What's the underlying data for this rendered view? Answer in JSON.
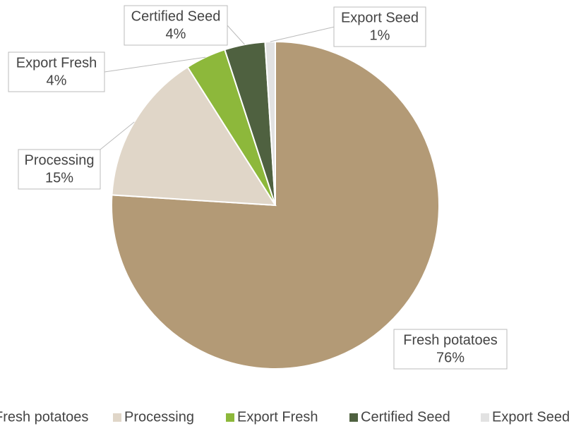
{
  "chart_data": {
    "type": "pie",
    "categories": [
      "Fresh potatoes",
      "Processing",
      "Export Fresh",
      "Certified Seed",
      "Export Seed"
    ],
    "values": [
      76,
      15,
      4,
      4,
      1
    ],
    "value_labels": [
      "76%",
      "15%",
      "4%",
      "4%",
      "1%"
    ],
    "colors": [
      "#b39a76",
      "#e0d6c8",
      "#8db83b",
      "#4f6140",
      "#e2e2e2"
    ],
    "legend": "bottom"
  }
}
